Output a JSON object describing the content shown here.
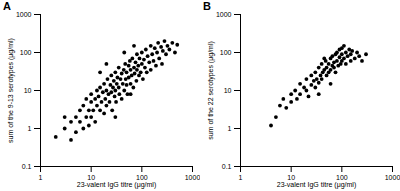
{
  "chart_data": [
    {
      "type": "scatter",
      "title": "A",
      "xlabel": "23-valent IgG titre (μg/ml)",
      "ylabel": "sum of the 9-13 serotypes (μg/ml)",
      "log": true,
      "grid": false,
      "color": "#000000",
      "marker": "circle",
      "xlim": [
        1,
        1000
      ],
      "xticks": [
        1,
        10,
        100,
        1000
      ],
      "ylim": [
        0.1,
        1000
      ],
      "yticks": [
        0.1,
        1,
        10,
        100,
        1000
      ],
      "x": [
        3,
        4,
        5,
        5,
        6,
        6,
        7,
        7,
        8,
        8,
        9,
        9,
        10,
        10,
        10,
        11,
        12,
        12,
        13,
        13,
        14,
        15,
        15,
        16,
        17,
        18,
        18,
        19,
        20,
        20,
        21,
        22,
        23,
        24,
        25,
        25,
        26,
        27,
        28,
        29,
        30,
        30,
        31,
        32,
        33,
        35,
        35,
        36,
        38,
        40,
        40,
        42,
        44,
        45,
        47,
        48,
        50,
        50,
        52,
        55,
        55,
        58,
        60,
        60,
        63,
        65,
        68,
        70,
        72,
        75,
        78,
        80,
        80,
        85,
        88,
        90,
        95,
        100,
        100,
        105,
        110,
        115,
        120,
        125,
        130,
        140,
        150,
        150,
        160,
        170,
        180,
        190,
        200,
        210,
        220,
        240,
        250,
        260,
        280,
        300,
        320,
        350,
        400,
        450,
        500,
        2,
        4,
        3,
        60,
        30,
        15,
        20,
        45,
        70
      ],
      "values": [
        1,
        0.5,
        2,
        0.8,
        3,
        1.5,
        1,
        4,
        2,
        6,
        3,
        1.2,
        5,
        2,
        8,
        3,
        6,
        1.5,
        10,
        4,
        7,
        3,
        12,
        5,
        9,
        2.5,
        15,
        6,
        10,
        4,
        20,
        8,
        5,
        14,
        25,
        9,
        3,
        12,
        18,
        7,
        30,
        10,
        5,
        15,
        22,
        12,
        40,
        8,
        20,
        6,
        28,
        15,
        35,
        10,
        50,
        20,
        14,
        30,
        8,
        45,
        22,
        60,
        15,
        35,
        25,
        70,
        12,
        40,
        28,
        55,
        18,
        90,
        35,
        45,
        25,
        70,
        30,
        100,
        50,
        20,
        65,
        40,
        120,
        30,
        80,
        55,
        150,
        35,
        90,
        60,
        130,
        45,
        100,
        180,
        70,
        140,
        50,
        110,
        200,
        90,
        150,
        120,
        180,
        100,
        160,
        0.6,
        1.5,
        2,
        8,
        2,
        30,
        50,
        100,
        150
      ]
    },
    {
      "type": "scatter",
      "title": "B",
      "xlabel": "23-valent IgG titre (μg/ml)",
      "ylabel": "sum of the 22 serotypes (μg/ml)",
      "log": true,
      "grid": false,
      "color": "#000000",
      "marker": "circle",
      "xlim": [
        1,
        1000
      ],
      "xticks": [
        1,
        10,
        100,
        1000
      ],
      "ylim": [
        0.1,
        1000
      ],
      "yticks": [
        0.1,
        1,
        10,
        100,
        1000
      ],
      "x": [
        5,
        6,
        7,
        8,
        10,
        10,
        12,
        13,
        15,
        15,
        18,
        20,
        20,
        22,
        25,
        25,
        28,
        30,
        30,
        32,
        35,
        35,
        38,
        40,
        40,
        42,
        45,
        48,
        50,
        50,
        55,
        55,
        60,
        60,
        65,
        65,
        70,
        70,
        75,
        75,
        80,
        80,
        85,
        90,
        90,
        95,
        100,
        100,
        110,
        110,
        120,
        120,
        130,
        140,
        150,
        150,
        160,
        180,
        200,
        220,
        250,
        300,
        4,
        60,
        35,
        100,
        45
      ],
      "values": [
        2,
        4,
        6,
        3.5,
        8,
        5,
        10,
        6,
        15,
        8,
        12,
        20,
        10,
        7,
        25,
        14,
        18,
        30,
        12,
        20,
        40,
        16,
        25,
        50,
        20,
        30,
        35,
        60,
        25,
        40,
        50,
        30,
        70,
        35,
        45,
        80,
        55,
        40,
        90,
        30,
        60,
        100,
        45,
        75,
        120,
        50,
        90,
        60,
        70,
        150,
        100,
        50,
        80,
        120,
        60,
        90,
        110,
        70,
        100,
        80,
        60,
        90,
        1.2,
        15,
        8,
        130,
        70
      ]
    }
  ]
}
